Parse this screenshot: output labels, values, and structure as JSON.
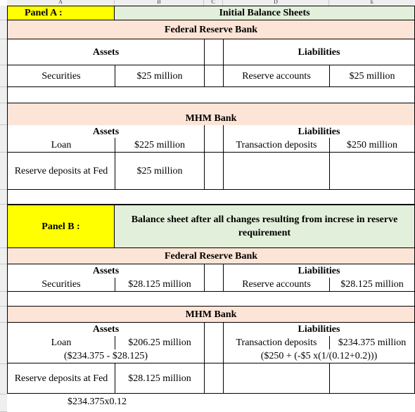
{
  "column_headers": [
    "A",
    "B",
    "C",
    "D",
    "E"
  ],
  "row_headers": [
    "",
    "",
    "",
    "",
    "",
    "",
    "",
    "",
    "",
    "",
    "",
    "",
    "",
    "",
    "",
    "",
    ""
  ],
  "panel_a": {
    "label": "Panel A :",
    "title": "Initial Balance Sheets",
    "fed": {
      "title": "Federal Reserve Bank",
      "assets_header": "Assets",
      "liabilities_header": "Liabilities",
      "asset_item": "Securities",
      "asset_value": "$25 million",
      "liability_item": "Reserve accounts",
      "liability_value": "$25 million"
    },
    "bank": {
      "title": "MHM Bank",
      "assets_header": "Assets",
      "liabilities_header": "Liabilities",
      "asset1_item": "Loan",
      "asset1_value": "$225 million",
      "liability_item": "Transaction deposits",
      "liability_value": "$250 million",
      "asset2_item": "Reserve deposits at Fed",
      "asset2_value": "$25 million"
    }
  },
  "panel_b": {
    "label": "Panel B :",
    "title": "Balance sheet after all changes resulting from increse in reserve requirement",
    "fed": {
      "title": "Federal Reserve Bank",
      "assets_header": "Assets",
      "liabilities_header": "Liabilities",
      "asset_item": "Securities",
      "asset_value": "$28.125 million",
      "liability_item": "Reserve accounts",
      "liability_value": "$28.125 million"
    },
    "bank": {
      "title": "MHM Bank",
      "assets_header": "Assets",
      "liabilities_header": "Liabilities",
      "asset1_item": "Loan",
      "asset1_value": "$206.25 million",
      "asset1_note": "($234.375 - $28.125)",
      "liability_item": "Transaction deposits",
      "liability_value": "$234.375 million",
      "liability_note": "($250 + (-$5 x(1/(0.12+0.2)))",
      "asset2_item": "Reserve deposits at Fed",
      "asset2_value": "$28.125 million",
      "asset2_note": "$234.375x0.12"
    }
  }
}
